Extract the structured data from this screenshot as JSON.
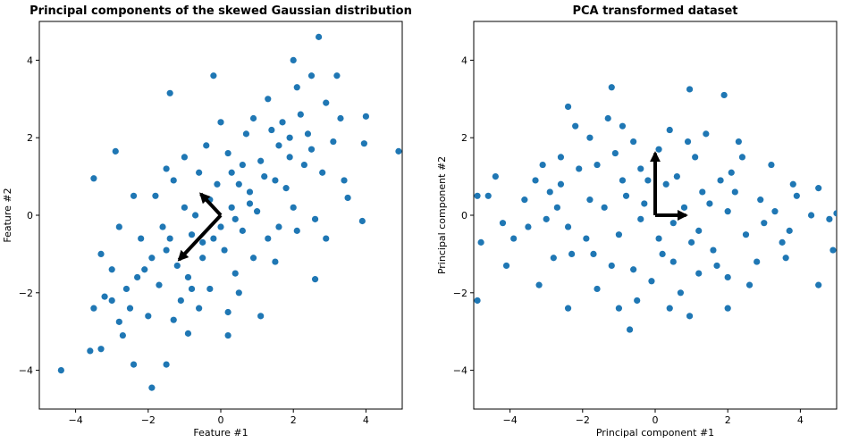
{
  "chart_data": [
    {
      "type": "scatter",
      "title": "Principal components of the skewed Gaussian distribution",
      "xlabel": "Feature #1",
      "ylabel": "Feature #2",
      "xlim": [
        -5,
        5
      ],
      "ylim": [
        -5,
        5
      ],
      "xticks": [
        -4,
        -2,
        0,
        2,
        4
      ],
      "yticks": [
        -4,
        -2,
        0,
        2,
        4
      ],
      "xtick_labels": [
        "−4",
        "−2",
        "0",
        "2",
        "4"
      ],
      "ytick_labels": [
        "−4",
        "−2",
        "0",
        "2",
        "4"
      ],
      "grid": false,
      "point_color": "#1f77b4",
      "arrow_color": "#000000",
      "arrows": [
        {
          "from": [
            0,
            0
          ],
          "to": [
            -1.15,
            -1.15
          ]
        },
        {
          "from": [
            0,
            0
          ],
          "to": [
            -0.55,
            0.55
          ]
        }
      ],
      "points": [
        [
          2.7,
          4.6
        ],
        [
          2.0,
          4.0
        ],
        [
          -0.2,
          3.6
        ],
        [
          -1.4,
          3.15
        ],
        [
          2.5,
          3.6
        ],
        [
          3.2,
          3.6
        ],
        [
          2.1,
          3.3
        ],
        [
          -1.5,
          1.2
        ],
        [
          -2.9,
          1.65
        ],
        [
          -3.5,
          0.95
        ],
        [
          -4.4,
          -4.0
        ],
        [
          -1.9,
          -4.45
        ],
        [
          -3.3,
          -3.45
        ],
        [
          -2.4,
          -3.85
        ],
        [
          -1.5,
          -3.85
        ],
        [
          -3.6,
          -3.5
        ],
        [
          -3.5,
          -2.4
        ],
        [
          -3.2,
          -2.1
        ],
        [
          -2.8,
          -2.75
        ],
        [
          -0.9,
          -3.05
        ],
        [
          0.2,
          -3.1
        ],
        [
          2.6,
          -1.65
        ],
        [
          1.1,
          -2.6
        ],
        [
          3.9,
          -0.15
        ],
        [
          4.9,
          1.65
        ],
        [
          3.5,
          0.45
        ],
        [
          2.9,
          -0.6
        ],
        [
          3.3,
          2.5
        ],
        [
          4.0,
          2.55
        ],
        [
          3.95,
          1.85
        ],
        [
          -1.2,
          -1.3
        ],
        [
          -0.5,
          -0.7
        ],
        [
          0.3,
          0.2
        ],
        [
          0.8,
          0.6
        ],
        [
          1.2,
          1.0
        ],
        [
          -0.8,
          -0.5
        ],
        [
          0.0,
          -0.3
        ],
        [
          0.5,
          0.8
        ],
        [
          1.5,
          0.9
        ],
        [
          -0.3,
          0.4
        ],
        [
          0.6,
          -0.4
        ],
        [
          1.9,
          1.5
        ],
        [
          -1.7,
          -1.8
        ],
        [
          -2.2,
          -0.6
        ],
        [
          -1.0,
          0.2
        ],
        [
          0.9,
          -1.1
        ],
        [
          2.3,
          1.3
        ],
        [
          1.4,
          2.2
        ],
        [
          -0.6,
          1.1
        ],
        [
          0.2,
          1.6
        ],
        [
          -1.5,
          -0.9
        ],
        [
          -2.6,
          -1.9
        ],
        [
          -3.0,
          -1.4
        ],
        [
          -2.0,
          -2.6
        ],
        [
          -1.1,
          -2.2
        ],
        [
          -0.3,
          -1.9
        ],
        [
          0.4,
          -1.5
        ],
        [
          1.3,
          -0.6
        ],
        [
          2.0,
          0.2
        ],
        [
          2.8,
          1.1
        ],
        [
          3.1,
          1.9
        ],
        [
          2.2,
          2.6
        ],
        [
          1.6,
          1.8
        ],
        [
          0.7,
          2.1
        ],
        [
          -0.4,
          1.8
        ],
        [
          -1.3,
          0.9
        ],
        [
          -2.4,
          0.5
        ],
        [
          -2.8,
          -0.3
        ],
        [
          -3.3,
          -1.0
        ],
        [
          -2.1,
          -1.4
        ],
        [
          -0.9,
          -1.6
        ],
        [
          0.1,
          -0.9
        ],
        [
          1.0,
          0.1
        ],
        [
          1.8,
          0.7
        ],
        [
          2.5,
          1.7
        ],
        [
          0.3,
          1.1
        ],
        [
          -0.7,
          0.0
        ],
        [
          -1.6,
          -0.3
        ],
        [
          -0.2,
          -0.6
        ],
        [
          0.8,
          0.3
        ],
        [
          1.1,
          1.4
        ],
        [
          1.7,
          2.4
        ],
        [
          2.4,
          2.1
        ],
        [
          -1.9,
          -1.1
        ],
        [
          -2.5,
          -2.4
        ],
        [
          -1.3,
          -2.7
        ],
        [
          -0.6,
          -2.4
        ],
        [
          0.5,
          -2.0
        ],
        [
          1.5,
          -1.2
        ],
        [
          2.1,
          -0.4
        ],
        [
          -3.0,
          -2.2
        ],
        [
          -1.8,
          0.5
        ],
        [
          -1.0,
          1.5
        ],
        [
          0.0,
          2.4
        ],
        [
          0.9,
          2.5
        ],
        [
          1.3,
          3.0
        ],
        [
          2.9,
          2.9
        ],
        [
          3.4,
          0.9
        ],
        [
          2.6,
          -0.1
        ],
        [
          1.6,
          -0.3
        ],
        [
          0.4,
          -0.1
        ],
        [
          -0.5,
          -1.1
        ],
        [
          -1.4,
          -0.6
        ],
        [
          -2.3,
          -1.6
        ],
        [
          -0.1,
          0.8
        ],
        [
          0.6,
          1.3
        ],
        [
          1.9,
          2.0
        ],
        [
          -0.8,
          -1.9
        ],
        [
          0.2,
          -2.5
        ],
        [
          -2.7,
          -3.1
        ]
      ]
    },
    {
      "type": "scatter",
      "title": "PCA transformed dataset",
      "xlabel": "Principal component #1",
      "ylabel": "Principal component #2",
      "xlim": [
        -5,
        5
      ],
      "ylim": [
        -5,
        5
      ],
      "xticks": [
        -4,
        -2,
        0,
        2,
        4
      ],
      "yticks": [
        -4,
        -2,
        0,
        2,
        4
      ],
      "xtick_labels": [
        "−4",
        "−2",
        "0",
        "2",
        "4"
      ],
      "ytick_labels": [
        "−4",
        "−2",
        "0",
        "2",
        "4"
      ],
      "grid": false,
      "point_color": "#1f77b4",
      "arrow_color": "#000000",
      "arrows": [
        {
          "from": [
            0,
            0
          ],
          "to": [
            0.85,
            0
          ]
        },
        {
          "from": [
            0,
            0
          ],
          "to": [
            0,
            1.6
          ]
        }
      ],
      "points": [
        [
          -4.9,
          -2.2
        ],
        [
          -4.1,
          -1.3
        ],
        [
          -1.2,
          3.3
        ],
        [
          0.95,
          3.25
        ],
        [
          1.9,
          3.1
        ],
        [
          -2.4,
          2.8
        ],
        [
          -4.9,
          0.5
        ],
        [
          -4.6,
          0.5
        ],
        [
          -4.4,
          1.0
        ],
        [
          -4.8,
          -0.7
        ],
        [
          5.0,
          0.05
        ],
        [
          4.5,
          -1.8
        ],
        [
          4.5,
          0.7
        ],
        [
          3.8,
          0.8
        ],
        [
          4.9,
          -0.9
        ],
        [
          4.8,
          -0.1
        ],
        [
          4.3,
          0.0
        ],
        [
          -0.7,
          -2.95
        ],
        [
          0.95,
          -2.6
        ],
        [
          2.0,
          -2.4
        ],
        [
          -2.4,
          -2.4
        ],
        [
          -3.2,
          -1.8
        ],
        [
          -4.2,
          -0.2
        ],
        [
          -3.6,
          0.4
        ],
        [
          -3.1,
          1.3
        ],
        [
          -2.6,
          1.5
        ],
        [
          -1.8,
          2.0
        ],
        [
          -0.9,
          2.3
        ],
        [
          0.4,
          2.2
        ],
        [
          1.4,
          2.1
        ],
        [
          2.3,
          1.9
        ],
        [
          3.2,
          1.3
        ],
        [
          3.9,
          0.5
        ],
        [
          3.5,
          -0.7
        ],
        [
          2.8,
          -1.2
        ],
        [
          2.0,
          -1.6
        ],
        [
          0.7,
          -2.0
        ],
        [
          -0.5,
          -2.2
        ],
        [
          -1.6,
          -1.9
        ],
        [
          -2.8,
          -1.1
        ],
        [
          -3.5,
          -0.3
        ],
        [
          -2.9,
          0.6
        ],
        [
          -2.1,
          1.2
        ],
        [
          -1.1,
          1.6
        ],
        [
          0.1,
          1.7
        ],
        [
          1.1,
          1.5
        ],
        [
          2.1,
          1.1
        ],
        [
          2.9,
          0.4
        ],
        [
          2.5,
          -0.5
        ],
        [
          1.6,
          -0.9
        ],
        [
          0.5,
          -1.2
        ],
        [
          -0.6,
          -1.4
        ],
        [
          -1.7,
          -1.0
        ],
        [
          -2.4,
          -0.3
        ],
        [
          -1.8,
          0.4
        ],
        [
          -0.9,
          0.9
        ],
        [
          0.3,
          0.8
        ],
        [
          1.3,
          0.6
        ],
        [
          2.0,
          0.1
        ],
        [
          1.2,
          -0.4
        ],
        [
          0.1,
          -0.6
        ],
        [
          -1.0,
          -0.5
        ],
        [
          -1.4,
          0.2
        ],
        [
          -0.3,
          0.3
        ],
        [
          0.8,
          0.2
        ],
        [
          0.5,
          -0.2
        ],
        [
          -0.4,
          -0.1
        ],
        [
          -3.9,
          -0.6
        ],
        [
          -3.3,
          0.9
        ],
        [
          -2.2,
          2.3
        ],
        [
          -1.3,
          2.5
        ],
        [
          -0.4,
          1.2
        ],
        [
          0.6,
          1.0
        ],
        [
          1.8,
          0.9
        ],
        [
          3.0,
          -0.2
        ],
        [
          3.6,
          -1.1
        ],
        [
          2.6,
          -1.8
        ],
        [
          1.2,
          -1.5
        ],
        [
          -0.1,
          -1.7
        ],
        [
          -1.2,
          -1.3
        ],
        [
          -2.3,
          -1.0
        ],
        [
          -3.0,
          -0.1
        ],
        [
          -2.6,
          0.8
        ],
        [
          -1.6,
          1.3
        ],
        [
          -0.6,
          1.9
        ],
        [
          0.9,
          1.9
        ],
        [
          2.4,
          1.5
        ],
        [
          3.3,
          0.1
        ],
        [
          1.7,
          -1.3
        ],
        [
          0.2,
          -1.0
        ],
        [
          -0.8,
          0.5
        ],
        [
          1.0,
          -0.7
        ],
        [
          -1.9,
          -0.6
        ],
        [
          2.2,
          0.6
        ],
        [
          -0.2,
          0.9
        ],
        [
          0.4,
          -2.4
        ],
        [
          -1.0,
          -2.4
        ],
        [
          1.5,
          0.3
        ],
        [
          -2.7,
          0.2
        ],
        [
          3.7,
          -0.4
        ]
      ]
    }
  ]
}
